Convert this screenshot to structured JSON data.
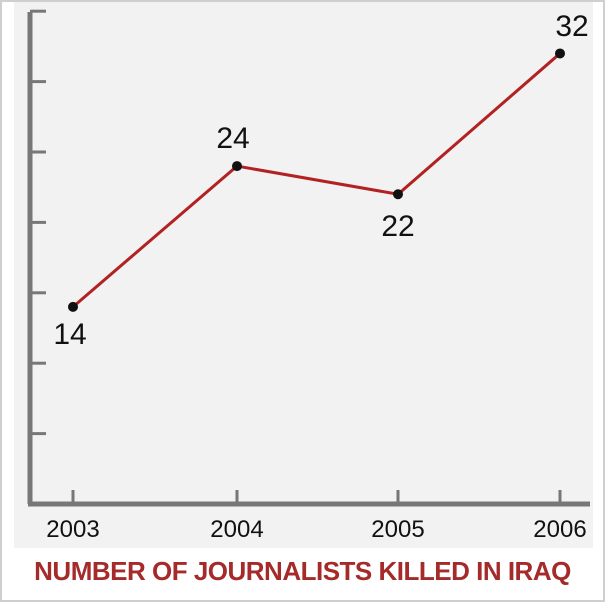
{
  "chart_data": {
    "type": "line",
    "title": "NUMBER OF JOURNALISTS KILLED IN IRAQ",
    "categories": [
      "2003",
      "2004",
      "2005",
      "2006"
    ],
    "values": [
      14,
      24,
      22,
      32
    ],
    "data_labels": [
      "14",
      "24",
      "22",
      "32"
    ],
    "xlabel": "",
    "ylabel": "",
    "ylim": [
      0,
      35
    ],
    "y_ticks": [
      0,
      5,
      10,
      15,
      20,
      25,
      30,
      35
    ],
    "y_tick_labels_shown": false,
    "grid": false,
    "colors": {
      "line": "#b22222",
      "axis": "#777777",
      "title": "#a52a2a",
      "background": "#f2f2f2"
    }
  }
}
